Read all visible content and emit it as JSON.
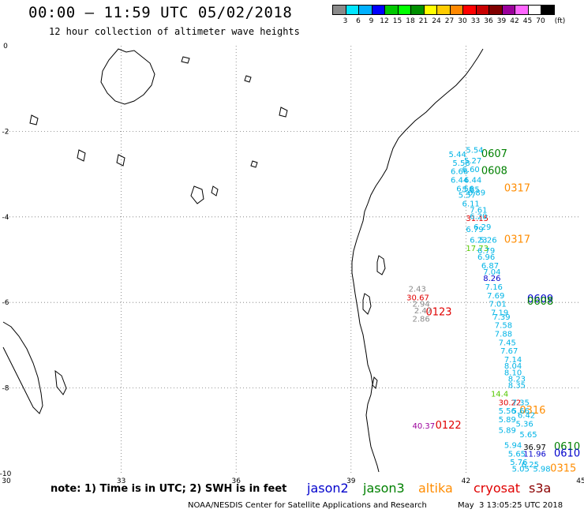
{
  "header": {
    "title": "00:00 — 11:59 UTC 05/02/2018",
    "subtitle": "12 hour collection of altimeter wave heights"
  },
  "color_scale": {
    "unit_label": "(ft)",
    "ticks": [
      "3",
      "6",
      "9",
      "12",
      "15",
      "18",
      "21",
      "24",
      "27",
      "30",
      "33",
      "36",
      "39",
      "42",
      "45",
      "70"
    ],
    "colors": [
      "#8a8a8a",
      "#00e5ff",
      "#00b0ff",
      "#0000ff",
      "#00c800",
      "#00ff00",
      "#009000",
      "#ffff00",
      "#ffcc00",
      "#ff8800",
      "#ff0000",
      "#c80000",
      "#800000",
      "#9b009b",
      "#ff66ff",
      "#ffffff",
      "#000000"
    ]
  },
  "map": {
    "lon_ticks": [
      "30",
      "33",
      "36",
      "39",
      "42",
      "45"
    ],
    "lat_ticks": [
      "0",
      "-2",
      "-4",
      "-6",
      "-8",
      "-10"
    ],
    "lon_range": [
      30,
      45
    ],
    "lat_range": [
      -10,
      0
    ],
    "track_passes": [
      {
        "label": "0607",
        "color": "#008000",
        "lon": 42.4,
        "lat": -2.6
      },
      {
        "label": "0608",
        "color": "#008000",
        "lon": 42.4,
        "lat": -3.0
      },
      {
        "label": "0317",
        "color": "#ff8c00",
        "lon": 43.0,
        "lat": -3.4
      },
      {
        "label": "0317",
        "color": "#ff8c00",
        "lon": 43.0,
        "lat": -4.6
      },
      {
        "label": "0609",
        "color": "#0000cc",
        "lon": 43.6,
        "lat": -6.0
      },
      {
        "label": "0608",
        "color": "#008000",
        "lon": 43.6,
        "lat": -6.05
      },
      {
        "label": "0123",
        "color": "#e00000",
        "lon": 40.95,
        "lat": -6.3
      },
      {
        "label": "0316",
        "color": "#ff8c00",
        "lon": 43.4,
        "lat": -8.6
      },
      {
        "label": "0122",
        "color": "#e00000",
        "lon": 41.2,
        "lat": -8.95
      },
      {
        "label": "0610",
        "color": "#008000",
        "lon": 44.3,
        "lat": -9.45
      },
      {
        "label": "0610",
        "color": "#0000cc",
        "lon": 44.3,
        "lat": -9.6
      },
      {
        "label": "0315",
        "color": "#ff8c00",
        "lon": 44.2,
        "lat": -9.95
      }
    ],
    "observations": [
      {
        "t": "5.54",
        "color": "#00b4e6",
        "lon": 42.0,
        "lat": -2.5
      },
      {
        "t": "5.44",
        "color": "#00b4e6",
        "lon": 41.55,
        "lat": -2.6
      },
      {
        "t": "5.58",
        "color": "#00b4e6",
        "lon": 41.65,
        "lat": -2.8
      },
      {
        "t": "5.27",
        "color": "#00b4e6",
        "lon": 41.95,
        "lat": -2.75
      },
      {
        "t": "6.60",
        "color": "#00b4e6",
        "lon": 41.9,
        "lat": -2.95
      },
      {
        "t": "6.66",
        "color": "#00b4e6",
        "lon": 41.6,
        "lat": -3.0
      },
      {
        "t": "6.44",
        "color": "#00b4e6",
        "lon": 41.6,
        "lat": -3.2
      },
      {
        "t": "6.44",
        "color": "#00b4e6",
        "lon": 41.95,
        "lat": -3.2
      },
      {
        "t": "6.56",
        "color": "#00b4e6",
        "lon": 41.75,
        "lat": -3.4
      },
      {
        "t": "5.85",
        "color": "#00b4e6",
        "lon": 41.9,
        "lat": -3.42
      },
      {
        "t": "5.57",
        "color": "#00b4e6",
        "lon": 41.8,
        "lat": -3.55
      },
      {
        "t": "6.89",
        "color": "#00b4e6",
        "lon": 42.05,
        "lat": -3.5
      },
      {
        "t": "6.11",
        "color": "#00b4e6",
        "lon": 41.9,
        "lat": -3.75
      },
      {
        "t": "7.61",
        "color": "#00b4e6",
        "lon": 42.1,
        "lat": -3.9
      },
      {
        "t": "31.15",
        "color": "#e00000",
        "lon": 42.0,
        "lat": -4.1
      },
      {
        "t": "6.20",
        "color": "#00b4e6",
        "lon": 42.1,
        "lat": -4.05
      },
      {
        "t": "6.79",
        "color": "#00b4e6",
        "lon": 42.0,
        "lat": -4.35
      },
      {
        "t": "6.29",
        "color": "#00b4e6",
        "lon": 42.2,
        "lat": -4.3
      },
      {
        "t": "6.23",
        "color": "#00b4e6",
        "lon": 42.1,
        "lat": -4.6
      },
      {
        "t": "5.26",
        "color": "#00b4e6",
        "lon": 42.35,
        "lat": -4.6
      },
      {
        "t": "17.73",
        "color": "#55c800",
        "lon": 42.0,
        "lat": -4.8
      },
      {
        "t": "6.79",
        "color": "#00b4e6",
        "lon": 42.3,
        "lat": -4.85
      },
      {
        "t": "6.96",
        "color": "#00b4e6",
        "lon": 42.3,
        "lat": -5.0
      },
      {
        "t": "6.87",
        "color": "#00b4e6",
        "lon": 42.4,
        "lat": -5.2
      },
      {
        "t": "7.04",
        "color": "#00b4e6",
        "lon": 42.45,
        "lat": -5.35
      },
      {
        "t": "8.26",
        "color": "#0000cc",
        "lon": 42.45,
        "lat": -5.5
      },
      {
        "t": "7.16",
        "color": "#00b4e6",
        "lon": 42.5,
        "lat": -5.7
      },
      {
        "t": "7.69",
        "color": "#00b4e6",
        "lon": 42.55,
        "lat": -5.9
      },
      {
        "t": "7.01",
        "color": "#00b4e6",
        "lon": 42.6,
        "lat": -6.1
      },
      {
        "t": "7.19",
        "color": "#00b4e6",
        "lon": 42.65,
        "lat": -6.3
      },
      {
        "t": "7.39",
        "color": "#00b4e6",
        "lon": 42.7,
        "lat": -6.4
      },
      {
        "t": "7.58",
        "color": "#00b4e6",
        "lon": 42.75,
        "lat": -6.6
      },
      {
        "t": "7.88",
        "color": "#00b4e6",
        "lon": 42.75,
        "lat": -6.8
      },
      {
        "t": "7.45",
        "color": "#00b4e6",
        "lon": 42.85,
        "lat": -7.0
      },
      {
        "t": "7.67",
        "color": "#00b4e6",
        "lon": 42.9,
        "lat": -7.2
      },
      {
        "t": "7.14",
        "color": "#00b4e6",
        "lon": 43.0,
        "lat": -7.4
      },
      {
        "t": "8.04",
        "color": "#00b4e6",
        "lon": 43.0,
        "lat": -7.55
      },
      {
        "t": "8.10",
        "color": "#00b4e6",
        "lon": 43.0,
        "lat": -7.7
      },
      {
        "t": "8.23",
        "color": "#00b4e6",
        "lon": 43.1,
        "lat": -7.85
      },
      {
        "t": "8.35",
        "color": "#00b4e6",
        "lon": 43.1,
        "lat": -8.0
      },
      {
        "t": "14.4",
        "color": "#55c800",
        "lon": 42.65,
        "lat": -8.2
      },
      {
        "t": "30.22",
        "color": "#e00000",
        "lon": 42.85,
        "lat": -8.4
      },
      {
        "t": "7.35",
        "color": "#00b4e6",
        "lon": 43.2,
        "lat": -8.4
      },
      {
        "t": "5.66",
        "color": "#00b4e6",
        "lon": 43.2,
        "lat": -8.6
      },
      {
        "t": "5.56",
        "color": "#00b4e6",
        "lon": 42.85,
        "lat": -8.6
      },
      {
        "t": "6.42",
        "color": "#00b4e6",
        "lon": 43.35,
        "lat": -8.7
      },
      {
        "t": "5.89",
        "color": "#00b4e6",
        "lon": 42.85,
        "lat": -8.8
      },
      {
        "t": "5.36",
        "color": "#00b4e6",
        "lon": 43.3,
        "lat": -8.9
      },
      {
        "t": "5.89",
        "color": "#00b4e6",
        "lon": 42.85,
        "lat": -9.05
      },
      {
        "t": "5.65",
        "color": "#00b4e6",
        "lon": 43.4,
        "lat": -9.15
      },
      {
        "t": "5.94",
        "color": "#00b4e6",
        "lon": 43.0,
        "lat": -9.4
      },
      {
        "t": "36.97",
        "color": "#000000",
        "lon": 43.5,
        "lat": -9.45
      },
      {
        "t": "5.65",
        "color": "#00b4e6",
        "lon": 43.1,
        "lat": -9.6
      },
      {
        "t": "11.96",
        "color": "#0000cc",
        "lon": 43.5,
        "lat": -9.6
      },
      {
        "t": "5.76",
        "color": "#00b4e6",
        "lon": 43.15,
        "lat": -9.8
      },
      {
        "t": "6.25",
        "color": "#00b4e6",
        "lon": 43.45,
        "lat": -9.85
      },
      {
        "t": "5.05",
        "color": "#00b4e6",
        "lon": 43.2,
        "lat": -9.95
      },
      {
        "t": "5.98",
        "color": "#00b4e6",
        "lon": 43.75,
        "lat": -9.95
      },
      {
        "t": "2.43",
        "color": "#8a8a8a",
        "lon": 40.5,
        "lat": -5.75
      },
      {
        "t": "30.67",
        "color": "#e00000",
        "lon": 40.45,
        "lat": -5.95
      },
      {
        "t": "2.94",
        "color": "#8a8a8a",
        "lon": 40.6,
        "lat": -6.1
      },
      {
        "t": "2.47",
        "color": "#8a8a8a",
        "lon": 40.65,
        "lat": -6.25
      },
      {
        "t": "2.86",
        "color": "#8a8a8a",
        "lon": 40.6,
        "lat": -6.45
      },
      {
        "t": "40.37",
        "color": "#9b009b",
        "lon": 40.6,
        "lat": -8.95
      }
    ]
  },
  "footer": {
    "note": "note: 1) Time is in UTC; 2) SWH is in feet",
    "legend": [
      {
        "label": "jason2",
        "color": "#0000cc"
      },
      {
        "label": "jason3",
        "color": "#008000"
      },
      {
        "label": "altika",
        "color": "#ff8c00"
      },
      {
        "label": "cryosat",
        "color": "#e00000"
      },
      {
        "label": "s3a",
        "color": "#8b0000"
      }
    ],
    "credit": "NOAA/NESDIS Center for Satellite Applications and Research",
    "timestamp": "May  3 13:05:25 UTC 2018"
  }
}
